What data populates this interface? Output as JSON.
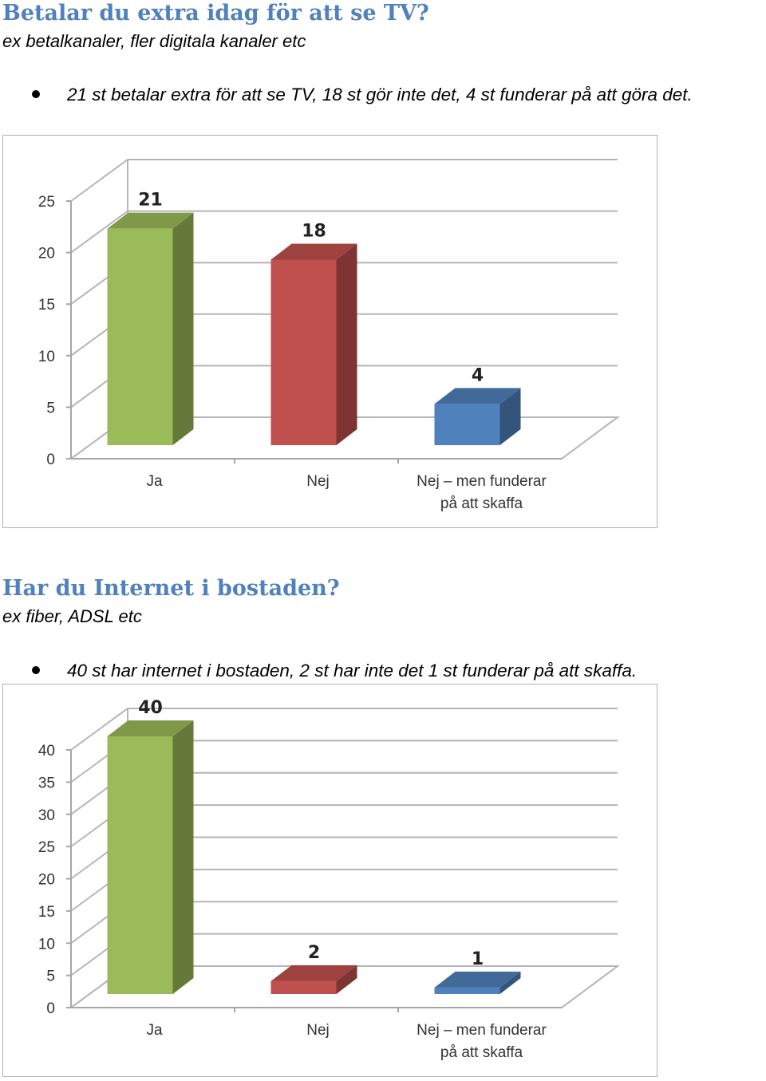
{
  "sections": [
    {
      "heading": "Betalar du extra idag för att se TV?",
      "subtitle": "ex betalkanaler, fler digitala kanaler etc",
      "bullet": "21 st betalar extra för att se TV, 18 st gör inte det, 4 st funderar på att göra det."
    },
    {
      "heading": "Har du Internet i bostaden?",
      "subtitle": "ex fiber, ADSL etc",
      "bullet": "40 st har internet i bostaden, 2 st har inte det 1 st funderar på att skaffa."
    }
  ],
  "chart_data": [
    {
      "type": "bar",
      "categories": [
        "Ja",
        "Nej",
        "Nej – men funderar på att skaffa"
      ],
      "category_lines": [
        [
          "Ja"
        ],
        [
          "Nej"
        ],
        [
          "Nej – men funderar",
          "på att skaffa"
        ]
      ],
      "values": [
        21,
        18,
        4
      ],
      "data_labels": [
        "21",
        "18",
        "4"
      ],
      "ylim": [
        0,
        25
      ],
      "yticks": [
        0,
        5,
        10,
        15,
        20,
        25
      ],
      "style": "3d-column",
      "grid": true,
      "bar_colors": [
        "#9bbb59",
        "#c0504d",
        "#4f81bd"
      ]
    },
    {
      "type": "bar",
      "categories": [
        "Ja",
        "Nej",
        "Nej – men funderar på att skaffa"
      ],
      "category_lines": [
        [
          "Ja"
        ],
        [
          "Nej"
        ],
        [
          "Nej – men funderar",
          "på att skaffa"
        ]
      ],
      "values": [
        40,
        2,
        1
      ],
      "data_labels": [
        "40",
        "2",
        "1"
      ],
      "ylim": [
        0,
        40
      ],
      "yticks": [
        0,
        5,
        10,
        15,
        20,
        25,
        30,
        35,
        40
      ],
      "style": "3d-column",
      "grid": true,
      "bar_colors": [
        "#9bbb59",
        "#c0504d",
        "#4f81bd"
      ]
    }
  ]
}
